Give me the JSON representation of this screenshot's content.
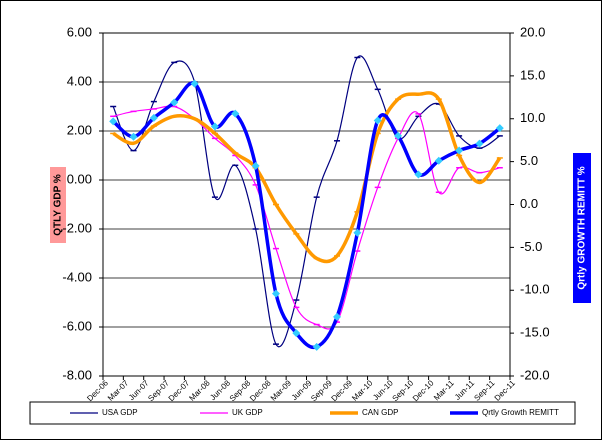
{
  "chart_data": {
    "type": "line",
    "ylabel": "QTLY GDP %",
    "y2label": "Qrtly GROWTH REMITT %",
    "categories": [
      "Dec-06",
      "Mar-07",
      "Jun-07",
      "Sep-07",
      "Dec-07",
      "Mar-08",
      "Jun-08",
      "Sep-08",
      "Dec-08",
      "Mar-09",
      "Jun-09",
      "Sep-09",
      "Dec-09",
      "Mar-10",
      "Jun-10",
      "Sep-10",
      "Dec-10",
      "Mar-11",
      "Jun-11",
      "Sep-11",
      "Dec-11"
    ],
    "ylim": [
      -8,
      6
    ],
    "yticks": [
      {
        "value": 6,
        "label": "6.00"
      },
      {
        "value": 4,
        "label": "4.00"
      },
      {
        "value": 2,
        "label": "2.00"
      },
      {
        "value": 0,
        "label": "0.00"
      },
      {
        "value": -2,
        "label": "-2.00"
      },
      {
        "value": -4,
        "label": "-4.00"
      },
      {
        "value": -6,
        "label": "-6.00"
      },
      {
        "value": -8,
        "label": "-8.00"
      }
    ],
    "y2lim": [
      -20,
      20
    ],
    "y2ticks": [
      {
        "value": 20,
        "label": "20.0"
      },
      {
        "value": 15,
        "label": "15.0"
      },
      {
        "value": 10,
        "label": "10.0"
      },
      {
        "value": 5,
        "label": "5.0"
      },
      {
        "value": 0,
        "label": "0.0"
      },
      {
        "value": -5,
        "label": "-5.0"
      },
      {
        "value": -10,
        "label": "-10.0"
      },
      {
        "value": -15,
        "label": "-15.0"
      },
      {
        "value": -20,
        "label": "-20.0"
      }
    ],
    "grid": true,
    "series": [
      {
        "name": "USA GDP",
        "color": "#000080",
        "width": 1.2,
        "values": [
          3.0,
          1.2,
          3.2,
          4.8,
          4.0,
          -0.7,
          0.6,
          -2.0,
          -6.7,
          -4.9,
          -0.7,
          1.6,
          5.0,
          3.7,
          1.7,
          2.6,
          3.1,
          1.8,
          1.3,
          1.8,
          null
        ]
      },
      {
        "name": "UK GDP",
        "color": "#ff00ff",
        "width": 1.2,
        "values": [
          2.6,
          2.8,
          2.9,
          3.0,
          2.5,
          1.7,
          1.0,
          -0.2,
          -2.8,
          -5.2,
          -5.9,
          -5.8,
          -2.9,
          -0.3,
          1.7,
          2.7,
          -0.5,
          0.5,
          0.3,
          0.5,
          null
        ]
      },
      {
        "name": "CAN GDP",
        "color": "#ff9900",
        "width": 3.5,
        "values": [
          1.9,
          1.5,
          2.2,
          2.6,
          2.5,
          1.9,
          1.1,
          0.5,
          -1.0,
          -2.2,
          -3.2,
          -3.1,
          -1.3,
          1.9,
          3.3,
          3.5,
          3.3,
          1.0,
          -0.1,
          0.9,
          null
        ]
      },
      {
        "name": "Qrtly Growth REMITT",
        "color": "#0000ff",
        "width": 3.5,
        "axis": "y2",
        "marker_color": "#33ccff",
        "values": [
          9.7,
          7.9,
          10.1,
          11.9,
          14.1,
          9.1,
          10.6,
          4.5,
          -10.4,
          -15.0,
          -16.6,
          -13.1,
          -3.3,
          9.8,
          8.0,
          3.5,
          5.1,
          6.3,
          7.1,
          8.9,
          null
        ]
      }
    ]
  }
}
